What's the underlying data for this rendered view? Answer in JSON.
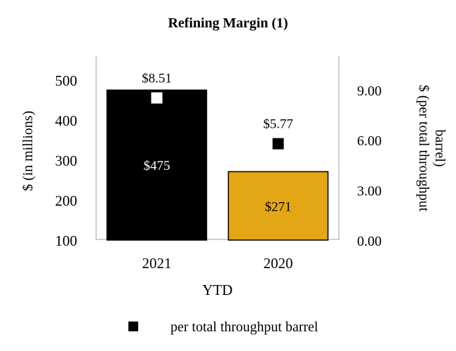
{
  "chart_data": {
    "type": "bar",
    "title": "Refining Margin (1)",
    "xlabel": "YTD",
    "ylabel_left": "$ (in millions)",
    "ylabel_right_lines": [
      "$ (per total throughput",
      "barrel)"
    ],
    "categories": [
      "2021",
      "2020"
    ],
    "series": [
      {
        "axis": "left",
        "kind": "bar",
        "values": [
          475,
          271
        ],
        "data_labels": [
          "$475",
          "$271"
        ],
        "colors": [
          "#000000",
          "#E3A614"
        ],
        "label_colors": [
          "#ffffff",
          "#000000"
        ]
      },
      {
        "name": "per total throughput barrel",
        "axis": "right",
        "kind": "marker",
        "values": [
          8.51,
          5.77
        ],
        "data_labels": [
          "$8.51",
          "$5.77"
        ],
        "colors": [
          "#ffffff",
          "#000000"
        ]
      }
    ],
    "ylim_left": [
      100,
      500
    ],
    "yticks_left": [
      "100",
      "200",
      "300",
      "400",
      "500"
    ],
    "ylim_right": [
      0,
      10
    ],
    "yticks_right": [
      "0.00",
      "3.00",
      "6.00",
      "9.00"
    ],
    "grid": false,
    "legend_position": "bottom"
  }
}
